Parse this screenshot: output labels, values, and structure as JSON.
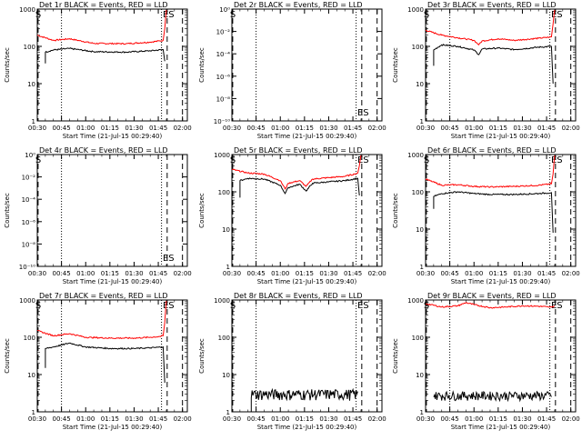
{
  "colors": {
    "events": "#000000",
    "lld": "#ff0000",
    "background": "#ffffff",
    "axis": "#000000"
  },
  "chart_data": [
    {
      "id": "det1",
      "type": "line",
      "title": "Det 1r BLACK = Events, RED = LLD",
      "xlabel": "Start Time (21-Jul-15 00:29:40)",
      "ylabel": "Counts/sec",
      "x_ticks": [
        "00:30",
        "00:45",
        "01:00",
        "01:15",
        "01:30",
        "01:45",
        "02:00"
      ],
      "y_ticks": [
        "1",
        "10",
        "100",
        "1000"
      ],
      "ylim": [
        1,
        1000
      ],
      "yscale": "log",
      "x_range_min": [
        0,
        93
      ],
      "markers": [
        {
          "label": "S",
          "t": 0.5
        },
        {
          "label": "E",
          "t": 79.5
        },
        {
          "label": "S",
          "t": 83
        }
      ],
      "dotted_lines_min": [
        15,
        77
      ],
      "dashed_lines_min": [
        0.5,
        80.5,
        90
      ],
      "series": [
        {
          "color": "red",
          "points": [
            [
              0,
              200
            ],
            [
              10,
              145
            ],
            [
              20,
              160
            ],
            [
              35,
              120
            ],
            [
              55,
              118
            ],
            [
              70,
              130
            ],
            [
              76,
              140
            ],
            [
              78,
              145
            ],
            [
              79,
              300
            ],
            [
              80,
              950
            ]
          ]
        },
        {
          "color": "black",
          "points": [
            [
              5,
              35
            ],
            [
              5,
              70
            ],
            [
              10,
              80
            ],
            [
              20,
              88
            ],
            [
              35,
              72
            ],
            [
              55,
              70
            ],
            [
              70,
              76
            ],
            [
              78,
              82
            ],
            [
              79,
              40
            ]
          ]
        }
      ]
    },
    {
      "id": "det2",
      "type": "line",
      "title": "Det 2r BLACK = Events, RED = LLD",
      "xlabel": "Start Time (21-Jul-15 00:29:40)",
      "ylabel": "Counts/sec",
      "x_ticks": [
        "00:30",
        "00:45",
        "01:00",
        "01:15",
        "01:30",
        "01:45",
        "02:00"
      ],
      "y_ticks": [
        "10⁻¹⁰",
        "10⁻⁸",
        "10⁻⁶",
        "10⁻⁴",
        "10⁻²",
        "10⁰"
      ],
      "ylim": [
        1,
        1e-10
      ],
      "yscale": "log-inverted",
      "x_range_min": [
        0,
        93
      ],
      "markers": [
        {
          "label": "S",
          "t": 0.5
        },
        {
          "label": "E",
          "t": 79.5
        },
        {
          "label": "S",
          "t": 83
        }
      ],
      "dotted_lines_min": [
        15,
        77
      ],
      "dashed_lines_min": [
        0.5,
        80.5,
        90
      ],
      "series": []
    },
    {
      "id": "det3",
      "type": "line",
      "title": "Det 3r BLACK = Events, RED = LLD",
      "xlabel": "Start Time (21-Jul-15 00:29:40)",
      "ylabel": "Counts/sec",
      "x_ticks": [
        "00:30",
        "00:45",
        "01:00",
        "01:15",
        "01:30",
        "01:45",
        "02:00"
      ],
      "y_ticks": [
        "1",
        "10",
        "100",
        "1000"
      ],
      "ylim": [
        1,
        1000
      ],
      "yscale": "log",
      "x_range_min": [
        0,
        93
      ],
      "markers": [
        {
          "label": "S",
          "t": 0.5
        },
        {
          "label": "E",
          "t": 79.5
        },
        {
          "label": "S",
          "t": 83
        }
      ],
      "dotted_lines_min": [
        15,
        77
      ],
      "dashed_lines_min": [
        0.5,
        80.5,
        90
      ],
      "series": [
        {
          "color": "red",
          "points": [
            [
              0,
              270
            ],
            [
              10,
              200
            ],
            [
              20,
              170
            ],
            [
              30,
              145
            ],
            [
              33,
              110
            ],
            [
              35,
              140
            ],
            [
              45,
              160
            ],
            [
              55,
              145
            ],
            [
              70,
              165
            ],
            [
              76,
              175
            ],
            [
              78,
              180
            ],
            [
              79,
              400
            ],
            [
              80,
              950
            ]
          ]
        },
        {
          "color": "black",
          "points": [
            [
              5,
              30
            ],
            [
              5,
              80
            ],
            [
              10,
              110
            ],
            [
              20,
              100
            ],
            [
              30,
              80
            ],
            [
              33,
              60
            ],
            [
              35,
              85
            ],
            [
              45,
              90
            ],
            [
              55,
              82
            ],
            [
              70,
              95
            ],
            [
              78,
              100
            ],
            [
              79,
              10
            ]
          ]
        }
      ]
    },
    {
      "id": "det4",
      "type": "line",
      "title": "Det 4r BLACK = Events, RED = LLD",
      "xlabel": "Start Time (21-Jul-15 00:29:40)",
      "ylabel": "Counts/sec",
      "x_ticks": [
        "00:30",
        "00:45",
        "01:00",
        "01:15",
        "01:30",
        "01:45",
        "02:00"
      ],
      "y_ticks": [
        "10⁻¹⁰",
        "10⁻⁸",
        "10⁻⁶",
        "10⁻⁴",
        "10⁻²",
        "10⁰"
      ],
      "ylim": [
        1,
        1e-10
      ],
      "yscale": "log-inverted",
      "x_range_min": [
        0,
        93
      ],
      "markers": [
        {
          "label": "S",
          "t": 0.5
        },
        {
          "label": "E",
          "t": 79.5
        },
        {
          "label": "S",
          "t": 83
        }
      ],
      "dotted_lines_min": [
        15,
        77
      ],
      "dashed_lines_min": [
        0.5,
        80.5,
        90
      ],
      "series": []
    },
    {
      "id": "det5",
      "type": "line",
      "title": "Det 5r BLACK = Events, RED = LLD",
      "xlabel": "Start Time (21-Jul-15 00:29:40)",
      "ylabel": "Counts/sec",
      "x_ticks": [
        "00:30",
        "00:45",
        "01:00",
        "01:15",
        "01:30",
        "01:45",
        "02:00"
      ],
      "y_ticks": [
        "1",
        "10",
        "100",
        "1000"
      ],
      "ylim": [
        1,
        1000
      ],
      "yscale": "log",
      "x_range_min": [
        0,
        93
      ],
      "markers": [
        {
          "label": "S",
          "t": 0.5
        },
        {
          "label": "E",
          "t": 79.5
        },
        {
          "label": "S",
          "t": 83
        }
      ],
      "dotted_lines_min": [
        15,
        77
      ],
      "dashed_lines_min": [
        0.5,
        80.5,
        90
      ],
      "series": [
        {
          "color": "red",
          "points": [
            [
              0,
              400
            ],
            [
              10,
              320
            ],
            [
              20,
              300
            ],
            [
              30,
              200
            ],
            [
              33,
              120
            ],
            [
              35,
              170
            ],
            [
              42,
              200
            ],
            [
              46,
              140
            ],
            [
              50,
              220
            ],
            [
              60,
              240
            ],
            [
              70,
              260
            ],
            [
              76,
              300
            ],
            [
              78,
              320
            ],
            [
              79,
              500
            ],
            [
              80,
              950
            ]
          ]
        },
        {
          "color": "black",
          "points": [
            [
              5,
              70
            ],
            [
              5,
              200
            ],
            [
              10,
              230
            ],
            [
              20,
              220
            ],
            [
              30,
              150
            ],
            [
              33,
              90
            ],
            [
              35,
              130
            ],
            [
              42,
              160
            ],
            [
              46,
              105
            ],
            [
              50,
              170
            ],
            [
              60,
              185
            ],
            [
              70,
              200
            ],
            [
              78,
              230
            ],
            [
              79,
              80
            ]
          ]
        }
      ]
    },
    {
      "id": "det6",
      "type": "line",
      "title": "Det 6r BLACK = Events, RED = LLD",
      "xlabel": "Start Time (21-Jul-15 00:29:40)",
      "ylabel": "Counts/sec",
      "x_ticks": [
        "00:30",
        "00:45",
        "01:00",
        "01:15",
        "01:30",
        "01:45",
        "02:00"
      ],
      "y_ticks": [
        "1",
        "10",
        "100",
        "1000"
      ],
      "ylim": [
        1,
        1000
      ],
      "yscale": "log",
      "x_range_min": [
        0,
        93
      ],
      "markers": [
        {
          "label": "S",
          "t": 0.5
        },
        {
          "label": "E",
          "t": 79.5
        },
        {
          "label": "S",
          "t": 83
        }
      ],
      "dotted_lines_min": [
        15,
        77
      ],
      "dashed_lines_min": [
        0.5,
        80.5,
        90
      ],
      "series": [
        {
          "color": "red",
          "points": [
            [
              0,
              220
            ],
            [
              10,
              150
            ],
            [
              20,
              155
            ],
            [
              30,
              140
            ],
            [
              40,
              135
            ],
            [
              55,
              140
            ],
            [
              70,
              150
            ],
            [
              76,
              160
            ],
            [
              78,
              165
            ],
            [
              79,
              300
            ],
            [
              80,
              950
            ]
          ]
        },
        {
          "color": "black",
          "points": [
            [
              5,
              35
            ],
            [
              5,
              75
            ],
            [
              10,
              90
            ],
            [
              20,
              100
            ],
            [
              30,
              90
            ],
            [
              40,
              85
            ],
            [
              55,
              85
            ],
            [
              70,
              90
            ],
            [
              78,
              95
            ],
            [
              79,
              8
            ]
          ]
        }
      ]
    },
    {
      "id": "det7",
      "type": "line",
      "title": "Det 7r BLACK = Events, RED = LLD",
      "xlabel": "Start Time (21-Jul-15 00:29:40)",
      "ylabel": "Counts/sec",
      "x_ticks": [
        "00:30",
        "00:45",
        "01:00",
        "01:15",
        "01:30",
        "01:45",
        "02:00"
      ],
      "y_ticks": [
        "1",
        "10",
        "100",
        "1000"
      ],
      "ylim": [
        1,
        1000
      ],
      "yscale": "log",
      "x_range_min": [
        0,
        93
      ],
      "markers": [
        {
          "label": "S",
          "t": 0.5
        },
        {
          "label": "E",
          "t": 79.5
        },
        {
          "label": "S",
          "t": 83
        }
      ],
      "dotted_lines_min": [
        15,
        77
      ],
      "dashed_lines_min": [
        0.5,
        80.5,
        90
      ],
      "series": [
        {
          "color": "red",
          "points": [
            [
              0,
              150
            ],
            [
              10,
              110
            ],
            [
              20,
              125
            ],
            [
              30,
              100
            ],
            [
              45,
              95
            ],
            [
              60,
              95
            ],
            [
              70,
              100
            ],
            [
              76,
              105
            ],
            [
              78,
              110
            ],
            [
              79,
              250
            ],
            [
              80,
              950
            ]
          ]
        },
        {
          "color": "black",
          "points": [
            [
              5,
              15
            ],
            [
              5,
              50
            ],
            [
              10,
              55
            ],
            [
              20,
              70
            ],
            [
              30,
              55
            ],
            [
              45,
              50
            ],
            [
              60,
              50
            ],
            [
              70,
              52
            ],
            [
              78,
              55
            ],
            [
              79,
              6
            ]
          ]
        }
      ]
    },
    {
      "id": "det8",
      "type": "line",
      "title": "Det 8r BLACK = Events, RED = LLD",
      "xlabel": "Start Time (21-Jul-15 00:29:40)",
      "ylabel": "Counts/sec",
      "x_ticks": [
        "00:30",
        "00:45",
        "01:00",
        "01:15",
        "01:30",
        "01:45",
        "02:00"
      ],
      "y_ticks": [
        "1",
        "10",
        "100",
        "1000"
      ],
      "ylim": [
        1,
        1000
      ],
      "yscale": "log",
      "x_range_min": [
        0,
        93
      ],
      "markers": [
        {
          "label": "S",
          "t": 0.5
        },
        {
          "label": "E",
          "t": 79.5
        },
        {
          "label": "S",
          "t": 83
        }
      ],
      "dotted_lines_min": [
        15,
        77
      ],
      "dashed_lines_min": [
        0.5,
        80.5,
        90
      ],
      "series": [
        {
          "color": "black",
          "noisy": true,
          "low": 2,
          "high": 4,
          "points": [
            [
              12,
              1
            ],
            [
              12,
              3
            ],
            [
              20,
              3.5
            ],
            [
              30,
              3
            ],
            [
              40,
              3
            ],
            [
              50,
              3
            ],
            [
              60,
              3
            ],
            [
              70,
              3
            ],
            [
              78,
              3.2
            ]
          ]
        }
      ]
    },
    {
      "id": "det9",
      "type": "line",
      "title": "Det 9r BLACK = Events, RED = LLD",
      "xlabel": "Start Time (21-Jul-15 00:29:40)",
      "ylabel": "Counts/sec",
      "x_ticks": [
        "00:30",
        "00:45",
        "01:00",
        "01:15",
        "01:30",
        "01:45",
        "02:00"
      ],
      "y_ticks": [
        "1",
        "10",
        "100",
        "1000"
      ],
      "ylim": [
        1,
        1000
      ],
      "yscale": "log",
      "x_range_min": [
        0,
        93
      ],
      "markers": [
        {
          "label": "S",
          "t": 0.5
        },
        {
          "label": "E",
          "t": 79.5
        },
        {
          "label": "S",
          "t": 83
        }
      ],
      "dotted_lines_min": [
        15,
        77
      ],
      "dashed_lines_min": [
        0.5,
        80.5,
        90
      ],
      "series": [
        {
          "color": "red",
          "points": [
            [
              0,
              800
            ],
            [
              10,
              650
            ],
            [
              20,
              700
            ],
            [
              25,
              850
            ],
            [
              30,
              750
            ],
            [
              40,
              620
            ],
            [
              50,
              650
            ],
            [
              60,
              700
            ],
            [
              70,
              680
            ],
            [
              76,
              650
            ],
            [
              78,
              640
            ],
            [
              80,
              700
            ]
          ]
        },
        {
          "color": "black",
          "noisy": true,
          "low": 2,
          "high": 3.5,
          "points": [
            [
              5,
              2.5
            ],
            [
              20,
              2.6
            ],
            [
              30,
              3
            ],
            [
              40,
              2.6
            ],
            [
              55,
              2.7
            ],
            [
              70,
              2.6
            ],
            [
              78,
              2.6
            ]
          ]
        }
      ]
    }
  ]
}
